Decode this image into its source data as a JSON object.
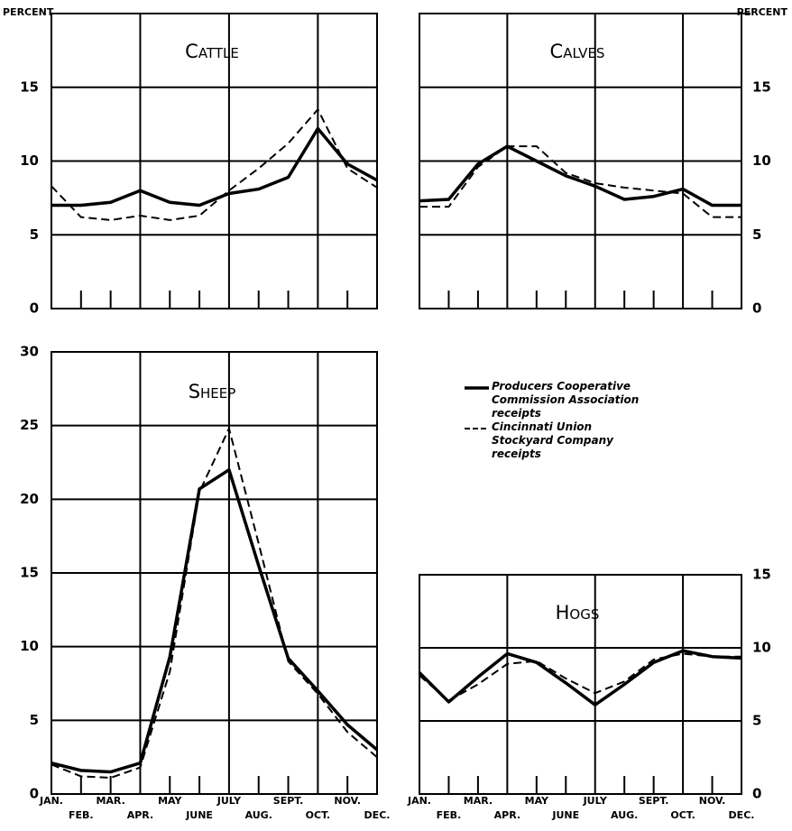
{
  "chart_data": [
    {
      "type": "line",
      "title": "Cattle",
      "y_label": "PERCENT",
      "y_axis_side": "left",
      "categories": [
        null,
        null,
        null,
        null,
        null,
        null,
        null,
        null,
        null,
        null,
        null,
        null
      ],
      "ylim": [
        0,
        20
      ],
      "yticks": [
        0,
        5,
        10,
        15
      ],
      "grid": true,
      "series": [
        {
          "color": "#000000",
          "style": "solid",
          "values": [
            7,
            7,
            7.2,
            8,
            7.2,
            7,
            7.8,
            8.1,
            8.9,
            12.2,
            9.8,
            8.7
          ]
        },
        {
          "color": "#000000",
          "style": "dashed",
          "values": [
            8.3,
            6.2,
            6.0,
            6.3,
            6.0,
            6.3,
            8.0,
            9.5,
            11.2,
            13.5,
            9.5,
            8.2
          ]
        }
      ]
    },
    {
      "type": "line",
      "title": "Calves",
      "y_label": "PERCENT",
      "y_axis_side": "right",
      "categories": [
        null,
        null,
        null,
        null,
        null,
        null,
        null,
        null,
        null,
        null,
        null,
        null
      ],
      "ylim": [
        0,
        20
      ],
      "yticks": [
        0,
        5,
        10,
        15
      ],
      "grid": true,
      "series": [
        {
          "color": "#000000",
          "style": "solid",
          "values": [
            7.3,
            7.4,
            9.8,
            11,
            10,
            9,
            8.3,
            7.4,
            7.6,
            8.1,
            7.0,
            7.0
          ]
        },
        {
          "color": "#000000",
          "style": "dashed",
          "values": [
            6.9,
            6.9,
            9.6,
            11,
            11,
            9.2,
            8.5,
            8.2,
            8.0,
            7.8,
            6.2,
            6.2
          ]
        }
      ]
    },
    {
      "type": "line",
      "title": "Sheep",
      "y_axis_side": "left",
      "categories": [
        "JAN.",
        "FEB.",
        "MAR.",
        "APR.",
        "MAY",
        "JUNE",
        "JULY",
        "AUG.",
        "SEPT.",
        "OCT.",
        "NOV.",
        "DEC."
      ],
      "ylim": [
        0,
        30
      ],
      "yticks": [
        0,
        5,
        10,
        15,
        20,
        25,
        30
      ],
      "grid": true,
      "series": [
        {
          "name": "Producers Cooperative Commission Association receipts",
          "color": "#000000",
          "style": "solid",
          "values": [
            2.1,
            1.6,
            1.5,
            2.1,
            9.3,
            20.7,
            22,
            15.5,
            9.2,
            7.0,
            4.7,
            3.0
          ]
        },
        {
          "name": "Cincinnati Union Stockyard Company receipts",
          "color": "#000000",
          "style": "dashed",
          "values": [
            2,
            1.2,
            1.1,
            1.8,
            8.3,
            20.5,
            24.8,
            17,
            9,
            6.8,
            4.2,
            2.5
          ]
        }
      ]
    },
    {
      "type": "line",
      "title": "Hogs",
      "y_axis_side": "right",
      "categories": [
        "JAN.",
        "FEB.",
        "MAR.",
        "APR.",
        "MAY",
        "JUNE",
        "JULY",
        "AUG.",
        "SEPT.",
        "OCT.",
        "NOV.",
        "DEC."
      ],
      "ylim": [
        0,
        15
      ],
      "yticks": [
        0,
        5,
        10,
        15
      ],
      "grid": true,
      "series": [
        {
          "color": "#000000",
          "style": "solid",
          "values": [
            8.3,
            6.3,
            8,
            9.6,
            9.0,
            7.6,
            6.1,
            7.5,
            9.0,
            9.8,
            9.4,
            9.3
          ]
        },
        {
          "color": "#000000",
          "style": "dashed",
          "values": [
            8.1,
            6.4,
            7.5,
            8.9,
            9.1,
            7.9,
            6.9,
            7.7,
            9.2,
            9.6,
            9.4,
            9.4
          ]
        }
      ]
    }
  ]
}
